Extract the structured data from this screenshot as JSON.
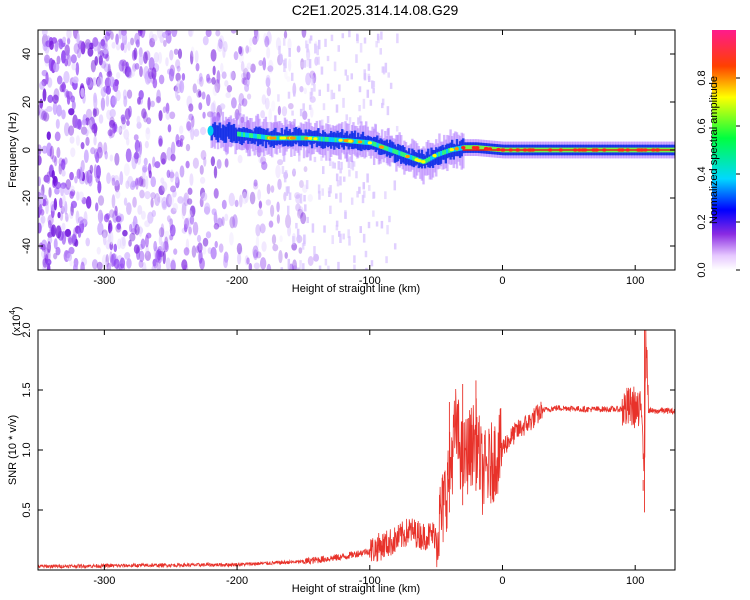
{
  "title": "C2E1.2025.314.14.08.G29",
  "colors": {
    "snr_line": "#e8322a",
    "axis": "#000000"
  },
  "chart_data": [
    {
      "type": "heatmap",
      "title": "C2E1.2025.314.14.08.G29",
      "xlabel": "Height of straight line (km)",
      "ylabel": "Frequency (Hz)",
      "xlim": [
        -350,
        130
      ],
      "ylim": [
        -50,
        50
      ],
      "xticks": [
        -300,
        -200,
        -100,
        0,
        100
      ],
      "yticks": [
        -40,
        -20,
        0,
        20,
        40
      ],
      "colorbar": {
        "label": "Normalized spectral amplitude",
        "range": [
          0,
          1
        ],
        "ticks": [
          0.0,
          0.2,
          0.4,
          0.6,
          0.8
        ],
        "colormap": "white-purple-blue-cyan-green-yellow-red-magenta"
      },
      "ridge": {
        "description_points": [
          {
            "x": -220,
            "y": 8
          },
          {
            "x": -175,
            "y": 5
          },
          {
            "x": -150,
            "y": 5
          },
          {
            "x": -120,
            "y": 4
          },
          {
            "x": -100,
            "y": 3
          },
          {
            "x": -85,
            "y": 0
          },
          {
            "x": -70,
            "y": -3
          },
          {
            "x": -60,
            "y": -5
          },
          {
            "x": -50,
            "y": -2
          },
          {
            "x": -40,
            "y": 0
          },
          {
            "x": -30,
            "y": 1
          },
          {
            "x": -20,
            "y": 1
          },
          {
            "x": 0,
            "y": 0
          },
          {
            "x": 130,
            "y": 0
          }
        ],
        "noise_region_x": [
          -350,
          -100
        ]
      }
    },
    {
      "type": "line",
      "xlabel": "Height of straight line (km)",
      "ylabel": "SNR (10 * v/v)",
      "y_multiplier": "(x10",
      "y_multiplier_exp": "4",
      "y_multiplier_close": ")",
      "xlim": [
        -350,
        130
      ],
      "ylim": [
        0,
        20000
      ],
      "xticks": [
        -300,
        -200,
        -100,
        0,
        100
      ],
      "yticks": [
        5000,
        10000,
        15000,
        20000
      ],
      "ytick_labels": [
        "0.5",
        "1.0",
        "1.5",
        "2.0"
      ],
      "series": [
        {
          "x": [
            -350,
            -300,
            -250,
            -200,
            -150,
            -120,
            -100,
            -80,
            -70,
            -60,
            -50,
            -45,
            -40,
            -35,
            -30,
            -25,
            -20,
            -15,
            -10,
            -5,
            0,
            10,
            20,
            30,
            40,
            50,
            60,
            70,
            80,
            90,
            95,
            100,
            103,
            105,
            107,
            108,
            110,
            115,
            120,
            130
          ],
          "y": [
            300,
            350,
            400,
            450,
            700,
            1100,
            1600,
            2500,
            3300,
            2800,
            3000,
            5000,
            8000,
            12000,
            9000,
            10000,
            11000,
            8000,
            8500,
            9500,
            10200,
            11500,
            12300,
            13300,
            13500,
            13500,
            13400,
            13400,
            13400,
            13400,
            13500,
            13600,
            12800,
            14000,
            8000,
            20000,
            13300,
            13200,
            13300,
            13200
          ]
        }
      ]
    }
  ]
}
